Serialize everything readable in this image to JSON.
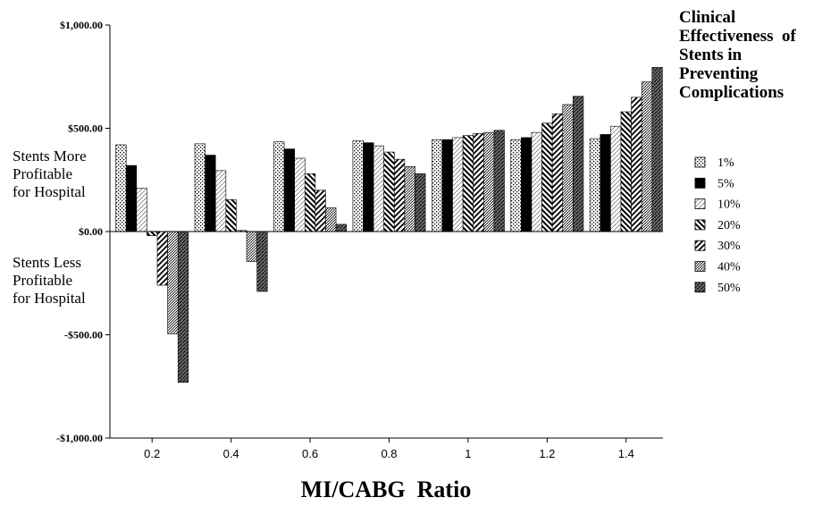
{
  "chart_data": {
    "type": "bar",
    "categories": [
      "0.2",
      "0.4",
      "0.6",
      "0.8",
      "1",
      "1.2",
      "1.4"
    ],
    "series": [
      {
        "name": "1%",
        "pattern": "dots",
        "values": [
          420,
          425,
          435,
          440,
          445,
          445,
          450
        ]
      },
      {
        "name": "5%",
        "pattern": "solid",
        "values": [
          320,
          370,
          400,
          430,
          445,
          455,
          470
        ]
      },
      {
        "name": "10%",
        "pattern": "light",
        "values": [
          210,
          295,
          355,
          415,
          455,
          480,
          510
        ]
      },
      {
        "name": "20%",
        "pattern": "back",
        "values": [
          -20,
          155,
          280,
          385,
          465,
          525,
          580
        ]
      },
      {
        "name": "30%",
        "pattern": "forward",
        "values": [
          -260,
          5,
          200,
          350,
          475,
          570,
          650
        ]
      },
      {
        "name": "40%",
        "pattern": "fine",
        "values": [
          -495,
          -145,
          115,
          315,
          480,
          615,
          725
        ]
      },
      {
        "name": "50%",
        "pattern": "dark",
        "values": [
          -730,
          -290,
          35,
          280,
          490,
          655,
          795
        ]
      }
    ],
    "ylim": [
      -1000,
      1000
    ],
    "yticks": [
      1000,
      500,
      0,
      -500,
      -1000
    ],
    "ytick_labels": [
      "$1,000.00",
      "$500.00",
      "$0.00",
      "-$500.00",
      "-$1,000.00"
    ],
    "xlabel": "MI/CABG  Ratio",
    "ylabel": "",
    "title": "",
    "annotations": {
      "above_zero": [
        "Stents More",
        "Profitable",
        "for Hospital"
      ],
      "below_zero": [
        "Stents Less",
        "Profitable",
        "for Hospital"
      ]
    },
    "legend": {
      "title_lines": [
        "Clinical",
        "Effectiveness  of",
        "Stents in",
        "Preventing",
        "Complications"
      ],
      "position": "right"
    },
    "grid": false
  }
}
